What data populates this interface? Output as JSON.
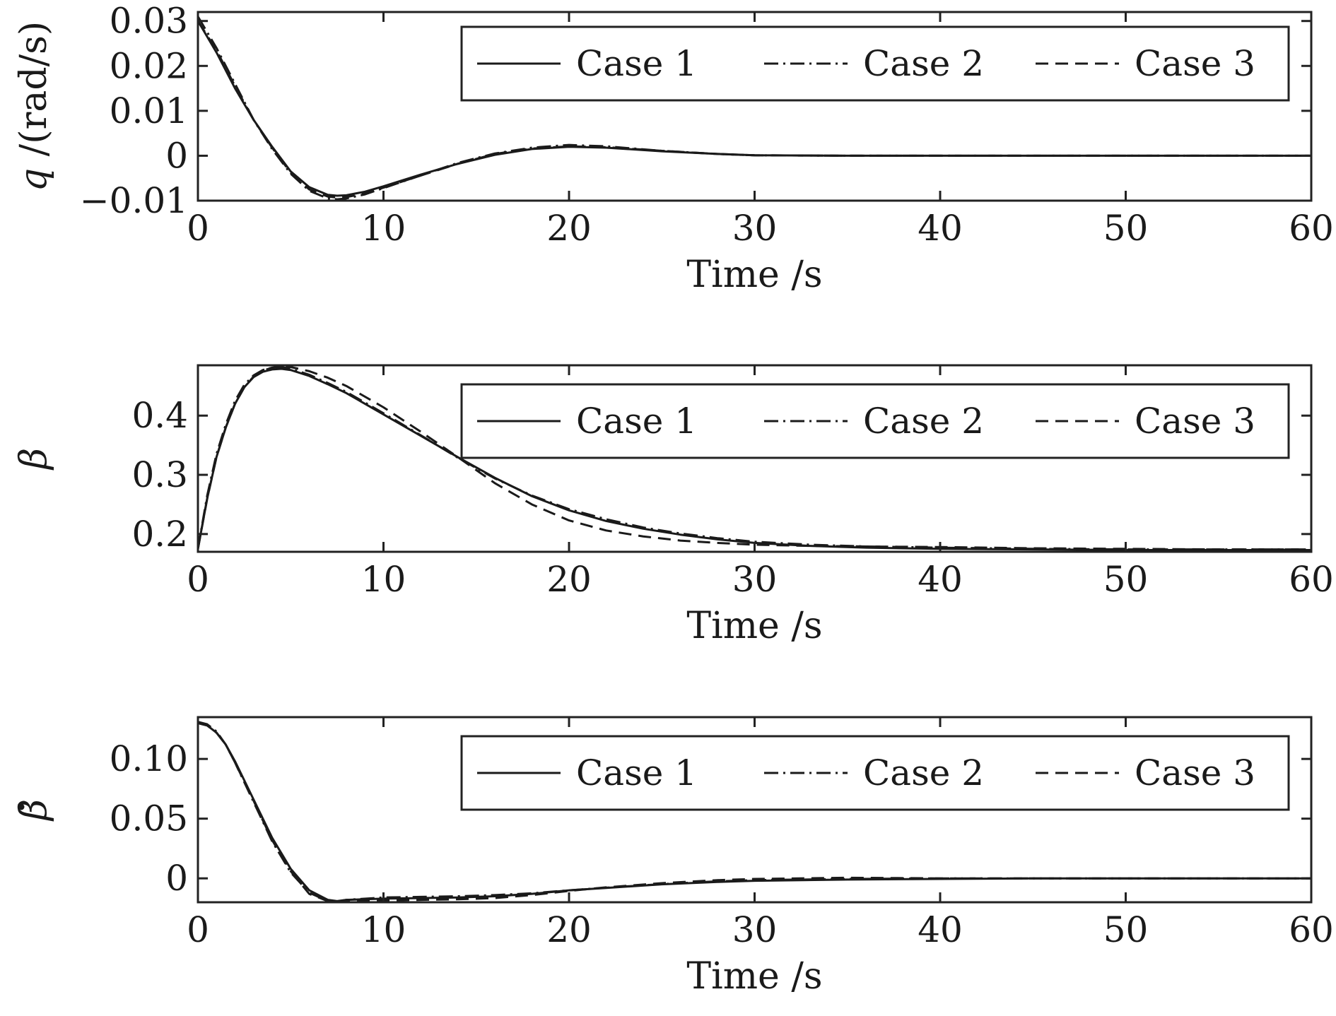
{
  "chart_data": [
    {
      "type": "line",
      "xlabel": "Time /s",
      "ylabel_var": "q",
      "ylabel_unit": " /(rad/s)",
      "xlim": [
        0,
        60
      ],
      "ylim": [
        -0.01,
        0.032
      ],
      "xticks": [
        0,
        10,
        20,
        30,
        40,
        50,
        60
      ],
      "xtick_labels": [
        "0",
        "10",
        "20",
        "30",
        "40",
        "50",
        "60"
      ],
      "yticks": [
        -0.01,
        0,
        0.01,
        0.02,
        0.03
      ],
      "ytick_labels": [
        "−0.01",
        "0",
        "0.01",
        "0.02",
        "0.03"
      ],
      "grid": false,
      "legend_position": "top-right",
      "series": [
        {
          "name": "Case 1",
          "style": "solid",
          "x": [
            0,
            1,
            2,
            3,
            4,
            5,
            6,
            7,
            7.5,
            8,
            9,
            10,
            12,
            14,
            16,
            18,
            20,
            22,
            25,
            28,
            30,
            35,
            40,
            45,
            50,
            55,
            60
          ],
          "y": [
            0.03,
            0.023,
            0.015,
            0.008,
            0.002,
            -0.0035,
            -0.007,
            -0.0087,
            -0.0089,
            -0.0088,
            -0.008,
            -0.0068,
            -0.0042,
            -0.0018,
            0.0002,
            0.0015,
            0.002,
            0.0018,
            0.001,
            0.0004,
            0.0001,
            0.0,
            0.0,
            0.0,
            0.0,
            0.0,
            0.0
          ]
        },
        {
          "name": "Case 2",
          "style": "dashdot",
          "x": [
            0,
            1,
            2,
            3,
            4,
            5,
            6,
            7,
            7.5,
            8,
            9,
            10,
            12,
            14,
            16,
            18,
            20,
            22,
            25,
            28,
            30,
            35,
            40,
            45,
            50,
            55,
            60
          ],
          "y": [
            0.031,
            0.024,
            0.016,
            0.008,
            0.0015,
            -0.004,
            -0.0078,
            -0.0095,
            -0.0097,
            -0.0095,
            -0.0086,
            -0.0072,
            -0.0044,
            -0.0016,
            0.0005,
            0.0018,
            0.0024,
            0.0021,
            0.0011,
            0.0004,
            0.0001,
            0.0,
            0.0,
            0.0,
            0.0,
            0.0,
            0.0
          ]
        },
        {
          "name": "Case 3",
          "style": "dashed",
          "x": [
            0,
            1,
            2,
            3,
            4,
            5,
            6,
            7,
            7.5,
            8,
            9,
            10,
            12,
            14,
            16,
            18,
            20,
            22,
            25,
            28,
            30,
            35,
            40,
            45,
            50,
            55,
            60
          ],
          "y": [
            0.03,
            0.0235,
            0.0155,
            0.008,
            0.0018,
            -0.0038,
            -0.0075,
            -0.0091,
            -0.0093,
            -0.0092,
            -0.0084,
            -0.0071,
            -0.0044,
            -0.0018,
            0.0004,
            0.0016,
            0.0021,
            0.0019,
            0.0011,
            0.0004,
            0.0001,
            0.0,
            0.0,
            0.0,
            0.0,
            0.0,
            0.0
          ]
        }
      ]
    },
    {
      "type": "line",
      "xlabel": "Time /s",
      "ylabel_var": "β",
      "ylabel_unit": "",
      "xlim": [
        0,
        60
      ],
      "ylim": [
        0.17,
        0.485
      ],
      "xticks": [
        0,
        10,
        20,
        30,
        40,
        50,
        60
      ],
      "xtick_labels": [
        "0",
        "10",
        "20",
        "30",
        "40",
        "50",
        "60"
      ],
      "yticks": [
        0.2,
        0.3,
        0.4
      ],
      "ytick_labels": [
        "0.2",
        "0.3",
        "0.4"
      ],
      "grid": false,
      "legend_position": "top-right",
      "series": [
        {
          "name": "Case 1",
          "style": "solid",
          "x": [
            0,
            0.5,
            1,
            1.5,
            2,
            2.5,
            3,
            3.5,
            4,
            4.5,
            5,
            6,
            7,
            8,
            10,
            12,
            14,
            16,
            18,
            20,
            22,
            24,
            26,
            28,
            30,
            33,
            36,
            40,
            45,
            50,
            55,
            60
          ],
          "y": [
            0.175,
            0.26,
            0.33,
            0.38,
            0.42,
            0.448,
            0.465,
            0.474,
            0.478,
            0.479,
            0.477,
            0.467,
            0.453,
            0.438,
            0.402,
            0.366,
            0.33,
            0.295,
            0.264,
            0.24,
            0.222,
            0.209,
            0.199,
            0.191,
            0.185,
            0.18,
            0.177,
            0.175,
            0.174,
            0.173,
            0.173,
            0.173
          ]
        },
        {
          "name": "Case 2",
          "style": "dashdot",
          "x": [
            0,
            0.5,
            1,
            1.5,
            2,
            2.5,
            3,
            3.5,
            4,
            4.5,
            5,
            6,
            7,
            8,
            10,
            12,
            14,
            16,
            18,
            20,
            22,
            24,
            26,
            28,
            30,
            33,
            36,
            40,
            45,
            50,
            55,
            60
          ],
          "y": [
            0.175,
            0.265,
            0.335,
            0.385,
            0.425,
            0.452,
            0.468,
            0.477,
            0.481,
            0.482,
            0.479,
            0.469,
            0.455,
            0.44,
            0.404,
            0.367,
            0.329,
            0.294,
            0.265,
            0.242,
            0.225,
            0.211,
            0.201,
            0.193,
            0.187,
            0.182,
            0.179,
            0.177,
            0.175,
            0.174,
            0.174,
            0.174
          ]
        },
        {
          "name": "Case 3",
          "style": "dashed",
          "x": [
            0,
            0.5,
            1,
            1.5,
            2,
            2.5,
            3,
            3.5,
            4,
            4.5,
            5,
            6,
            7,
            8,
            10,
            12,
            14,
            16,
            18,
            20,
            22,
            24,
            26,
            28,
            30,
            33,
            36,
            40,
            45,
            50,
            55,
            60
          ],
          "y": [
            0.175,
            0.26,
            0.33,
            0.38,
            0.42,
            0.448,
            0.466,
            0.476,
            0.481,
            0.483,
            0.482,
            0.475,
            0.464,
            0.45,
            0.414,
            0.373,
            0.33,
            0.286,
            0.25,
            0.223,
            0.206,
            0.196,
            0.189,
            0.185,
            0.182,
            0.18,
            0.179,
            0.178,
            0.176,
            0.175,
            0.174,
            0.174
          ]
        }
      ]
    },
    {
      "type": "line",
      "xlabel": "Time /s",
      "ylabel_var": "β",
      "ylabel_dot": true,
      "ylabel_unit": "",
      "xlim": [
        0,
        60
      ],
      "ylim": [
        -0.02,
        0.135
      ],
      "xticks": [
        0,
        10,
        20,
        30,
        40,
        50,
        60
      ],
      "xtick_labels": [
        "0",
        "10",
        "20",
        "30",
        "40",
        "50",
        "60"
      ],
      "yticks": [
        0,
        0.05,
        0.1
      ],
      "ytick_labels": [
        "0",
        "0.05",
        "0.10"
      ],
      "grid": false,
      "legend_position": "top-right",
      "series": [
        {
          "name": "Case 1",
          "style": "solid",
          "x": [
            0,
            0.5,
            1,
            1.5,
            2,
            3,
            4,
            5,
            6,
            7,
            7.5,
            8,
            10,
            12,
            14,
            16,
            18,
            20,
            22,
            25,
            28,
            30,
            35,
            40,
            45,
            50,
            55,
            60
          ],
          "y": [
            0.13,
            0.128,
            0.122,
            0.112,
            0.098,
            0.066,
            0.034,
            0.008,
            -0.01,
            -0.018,
            -0.019,
            -0.018,
            -0.017,
            -0.0165,
            -0.016,
            -0.015,
            -0.013,
            -0.01,
            -0.008,
            -0.005,
            -0.003,
            -0.002,
            -0.001,
            -0.0005,
            0.0,
            0.0,
            0.0,
            0.0
          ]
        },
        {
          "name": "Case 2",
          "style": "dashdot",
          "x": [
            0,
            0.5,
            1,
            1.5,
            2,
            3,
            4,
            5,
            6,
            7,
            7.5,
            8,
            10,
            12,
            14,
            16,
            18,
            20,
            22,
            25,
            28,
            30,
            35,
            40,
            45,
            50,
            55,
            60
          ],
          "y": [
            0.131,
            0.129,
            0.123,
            0.112,
            0.097,
            0.064,
            0.031,
            0.005,
            -0.012,
            -0.019,
            -0.0195,
            -0.018,
            -0.016,
            -0.0155,
            -0.015,
            -0.014,
            -0.0125,
            -0.01,
            -0.0078,
            -0.0048,
            -0.0025,
            -0.0015,
            -0.0005,
            0.0,
            0.0,
            0.0,
            0.0,
            0.0
          ]
        },
        {
          "name": "Case 3",
          "style": "dashed",
          "x": [
            0,
            0.5,
            1,
            1.5,
            2,
            3,
            4,
            5,
            6,
            7,
            7.5,
            8,
            10,
            12,
            14,
            16,
            18,
            20,
            22,
            25,
            28,
            30,
            35,
            40,
            45,
            50,
            55,
            60
          ],
          "y": [
            0.13,
            0.128,
            0.122,
            0.112,
            0.097,
            0.065,
            0.032,
            0.006,
            -0.013,
            -0.019,
            -0.0195,
            -0.019,
            -0.0185,
            -0.018,
            -0.0175,
            -0.0165,
            -0.014,
            -0.0105,
            -0.0075,
            -0.004,
            -0.0015,
            -0.0005,
            0.0005,
            0.0,
            0.0,
            0.0,
            0.0,
            0.0
          ]
        }
      ]
    }
  ],
  "colors": {
    "line": "#1a1a1a",
    "axis": "#222222",
    "background": "#ffffff"
  }
}
